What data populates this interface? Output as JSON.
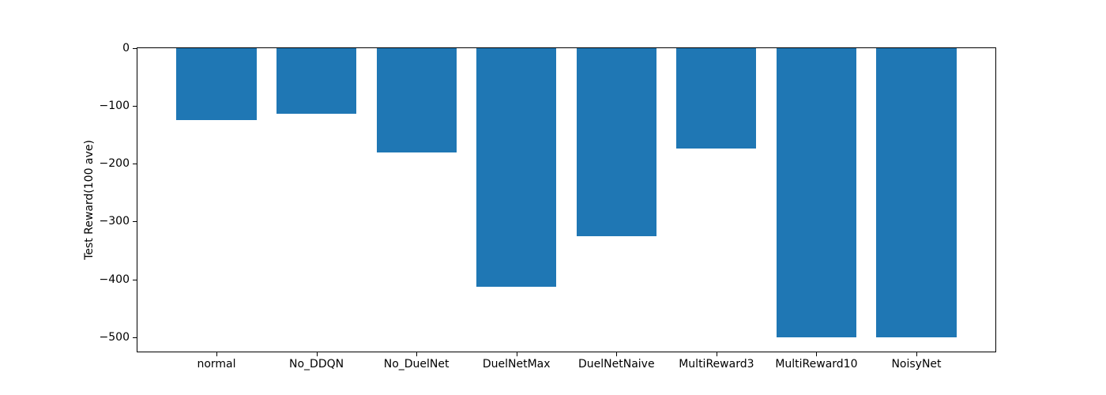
{
  "figure": {
    "background": "#ffffff"
  },
  "chart_data": {
    "type": "bar",
    "title": "",
    "xlabel": "",
    "ylabel": "Test Reward(100 ave)",
    "categories": [
      "normal",
      "No_DDQN",
      "No_DuelNet",
      "DuelNetMax",
      "DuelNetNaive",
      "MultiReward3",
      "MultiReward10",
      "NoisyNet"
    ],
    "values": [
      -125,
      -114,
      -180,
      -413,
      -325,
      -173,
      -500,
      -500
    ],
    "bar_color": "#1f77b4",
    "spine_color": "#000000",
    "bar_width": 0.8,
    "xlim": [
      -0.79,
      7.79
    ],
    "ylim": [
      -525,
      0
    ],
    "yticks": [
      0,
      -100,
      -200,
      -300,
      -400,
      -500
    ],
    "ytick_labels": [
      "0",
      "−100",
      "−200",
      "−300",
      "−400",
      "−500"
    ],
    "grid": false,
    "legend": null
  }
}
